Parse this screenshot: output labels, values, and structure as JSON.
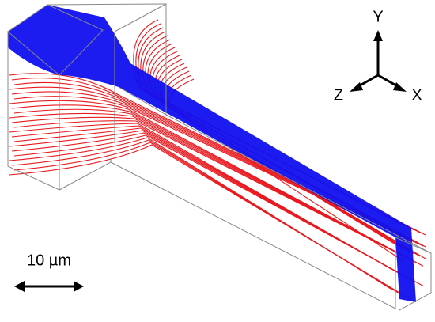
{
  "axes": {
    "y_label": "Y",
    "z_label": "Z",
    "x_label": "X"
  },
  "scale_bar": {
    "label": "10 µm"
  }
}
